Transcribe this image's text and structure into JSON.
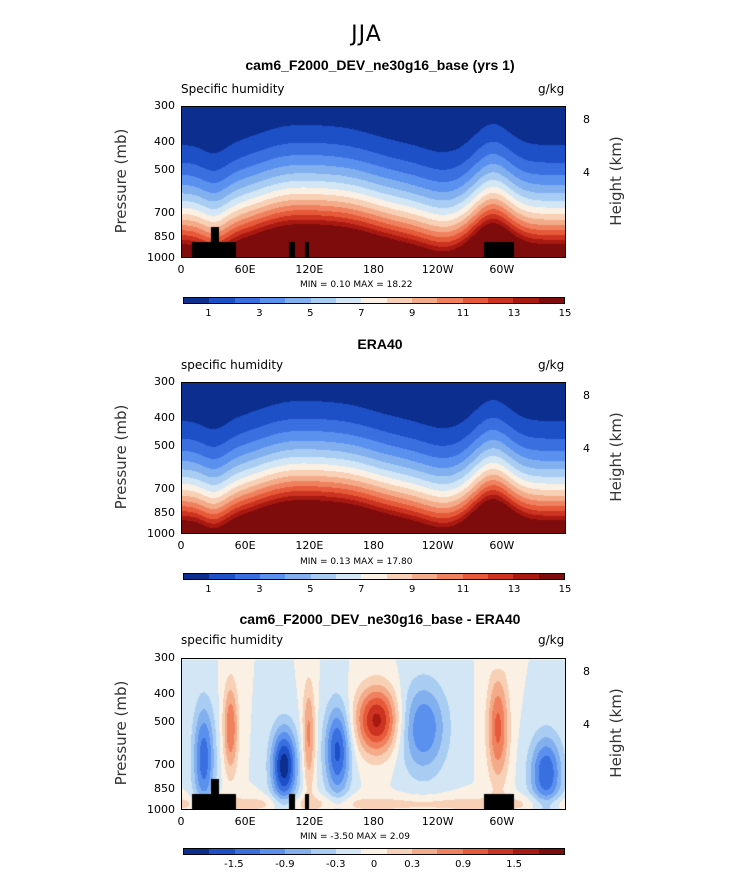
{
  "page_title": "JJA",
  "colors": [
    "#0c2e8e",
    "#1d4fc6",
    "#3a6fe0",
    "#5a90ee",
    "#82afee",
    "#a9cdf2",
    "#d2e6f5",
    "#faf0e4",
    "#f8d0b5",
    "#f3ab89",
    "#ef815e",
    "#e65a3a",
    "#cc3320",
    "#a81912",
    "#7e0c0c"
  ],
  "chart_data": [
    {
      "type": "heatmap",
      "title": "cam6_F2000_DEV_ne30g16_base (yrs 1)",
      "variable_label": "Specific humidity",
      "units": "g/kg",
      "ylabel": "Pressure (mb)",
      "right_label": "Height (km)",
      "y_ticks": [
        "300",
        "400",
        "500",
        "700",
        "850",
        "1000"
      ],
      "right_ticks": [
        "8",
        "4"
      ],
      "x_ticks": [
        "0",
        "60E",
        "120E",
        "180",
        "120W",
        "60W"
      ],
      "minmax": "MIN =    0.10   MAX =   18.22",
      "colorbar_labels": [
        "1",
        "3",
        "5",
        "7",
        "9",
        "11",
        "13",
        "15"
      ],
      "min": 0.1,
      "max": 18.22,
      "kind": "field"
    },
    {
      "type": "heatmap",
      "title": "ERA40",
      "variable_label": "specific humidity",
      "units": "g/kg",
      "ylabel": "Pressure (mb)",
      "right_label": "Height (km)",
      "y_ticks": [
        "300",
        "400",
        "500",
        "700",
        "850",
        "1000"
      ],
      "right_ticks": [
        "8",
        "4"
      ],
      "x_ticks": [
        "0",
        "60E",
        "120E",
        "180",
        "120W",
        "60W"
      ],
      "minmax": "MIN =    0.13   MAX =   17.80",
      "colorbar_labels": [
        "1",
        "3",
        "5",
        "7",
        "9",
        "11",
        "13",
        "15"
      ],
      "min": 0.13,
      "max": 17.8,
      "kind": "field"
    },
    {
      "type": "heatmap",
      "title": "cam6_F2000_DEV_ne30g16_base - ERA40",
      "variable_label": "specific humidity",
      "units": "g/kg",
      "ylabel": "Pressure (mb)",
      "right_label": "Height (km)",
      "y_ticks": [
        "300",
        "400",
        "500",
        "700",
        "850",
        "1000"
      ],
      "right_ticks": [
        "8",
        "4"
      ],
      "x_ticks": [
        "0",
        "60E",
        "120E",
        "180",
        "120W",
        "60W"
      ],
      "minmax": "MIN =   -3.50   MAX =    2.09",
      "colorbar_labels": [
        "-1.5",
        "-0.9",
        "-0.3",
        "0",
        "0.3",
        "0.9",
        "1.5"
      ],
      "min": -3.5,
      "max": 2.09,
      "kind": "diff"
    }
  ]
}
